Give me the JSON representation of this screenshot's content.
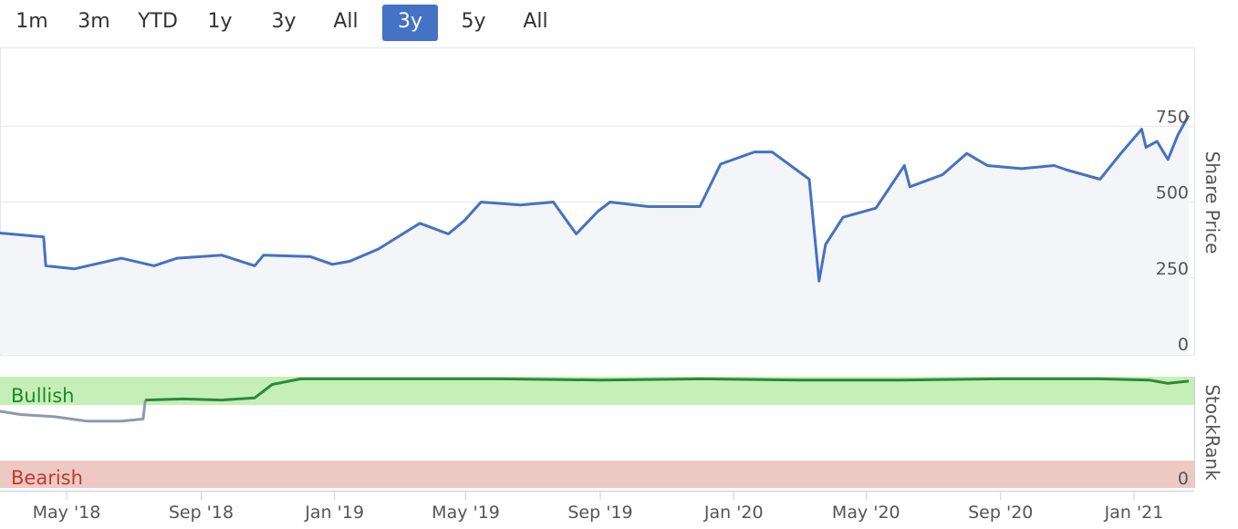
{
  "range_buttons": [
    {
      "label": "1m",
      "active": false
    },
    {
      "label": "3m",
      "active": false
    },
    {
      "label": "YTD",
      "active": false
    },
    {
      "label": "1y",
      "active": false
    },
    {
      "label": "3y",
      "active": false
    },
    {
      "label": "All",
      "active": false
    },
    {
      "label": "3y",
      "active": true
    },
    {
      "label": "5y",
      "active": false
    },
    {
      "label": "All",
      "active": false
    }
  ],
  "colors": {
    "accent": "#4472c4",
    "price_line": "#4472c4",
    "bullish_band": "#c6efb8",
    "bearish_band": "#edc9c4",
    "bullish_text": "#1a8a2a",
    "bearish_text": "#c0392b",
    "stockrank_bull_line": "#2a8a3a",
    "stockrank_low_line": "#8a9ab0"
  },
  "chart_data": [
    {
      "type": "line",
      "ylabel": "Share Price",
      "ylim": [
        0,
        1000
      ],
      "yticks": [
        0,
        250,
        500,
        750
      ],
      "x_ticks": [
        "May '18",
        "Sep '18",
        "Jan '19",
        "May '19",
        "Sep '19",
        "Jan '20",
        "May '20",
        "Sep '20",
        "Jan '21"
      ],
      "x": [
        "2018-02-22",
        "2018-04-10",
        "2018-04-12",
        "2018-05-08",
        "2018-06-20",
        "2018-07-20",
        "2018-08-10",
        "2018-09-20",
        "2018-10-20",
        "2018-10-28",
        "2018-12-10",
        "2018-12-30",
        "2019-01-15",
        "2019-02-10",
        "2019-03-20",
        "2019-04-15",
        "2019-04-30",
        "2019-05-15",
        "2019-06-20",
        "2019-07-20",
        "2019-08-10",
        "2019-08-30",
        "2019-09-10",
        "2019-10-15",
        "2019-12-01",
        "2019-12-20",
        "2020-01-20",
        "2020-02-05",
        "2020-02-22",
        "2020-03-10",
        "2020-03-19",
        "2020-03-25",
        "2020-04-10",
        "2020-05-10",
        "2020-06-05",
        "2020-06-10",
        "2020-07-10",
        "2020-08-01",
        "2020-08-20",
        "2020-09-20",
        "2020-10-20",
        "2020-11-01",
        "2020-12-01",
        "2020-12-20",
        "2021-01-08",
        "2021-01-12",
        "2021-01-22",
        "2021-02-01",
        "2021-02-10",
        "2021-02-20"
      ],
      "values": [
        400,
        385,
        290,
        280,
        315,
        290,
        315,
        325,
        290,
        325,
        320,
        295,
        305,
        345,
        430,
        395,
        440,
        500,
        490,
        500,
        395,
        470,
        500,
        485,
        485,
        625,
        665,
        665,
        620,
        575,
        240,
        360,
        450,
        480,
        620,
        550,
        590,
        660,
        620,
        610,
        620,
        605,
        575,
        660,
        740,
        680,
        700,
        640,
        720,
        785
      ]
    },
    {
      "type": "line",
      "ylabel": "StockRank",
      "ylim": [
        0,
        100
      ],
      "yticks": [
        0
      ],
      "bands": [
        {
          "label": "Bullish",
          "from": 80,
          "to": 100
        },
        {
          "label": "Bearish",
          "from": 0,
          "to": 10
        }
      ],
      "x": [
        "2018-02-22",
        "2018-03-20",
        "2018-04-20",
        "2018-05-20",
        "2018-06-20",
        "2018-07-10",
        "2018-07-12",
        "2018-08-15",
        "2018-09-20",
        "2018-10-20",
        "2018-11-05",
        "2018-12-01",
        "2019-02-01",
        "2019-06-01",
        "2019-09-01",
        "2019-12-01",
        "2020-03-01",
        "2020-06-01",
        "2020-09-01",
        "2020-12-01",
        "2021-01-15",
        "2021-02-01",
        "2021-02-20"
      ],
      "values": [
        70,
        66,
        64,
        60,
        60,
        62,
        79,
        80,
        79,
        81,
        93,
        98,
        98,
        98,
        97,
        98,
        97,
        97,
        98,
        98,
        97,
        94,
        96
      ]
    }
  ]
}
